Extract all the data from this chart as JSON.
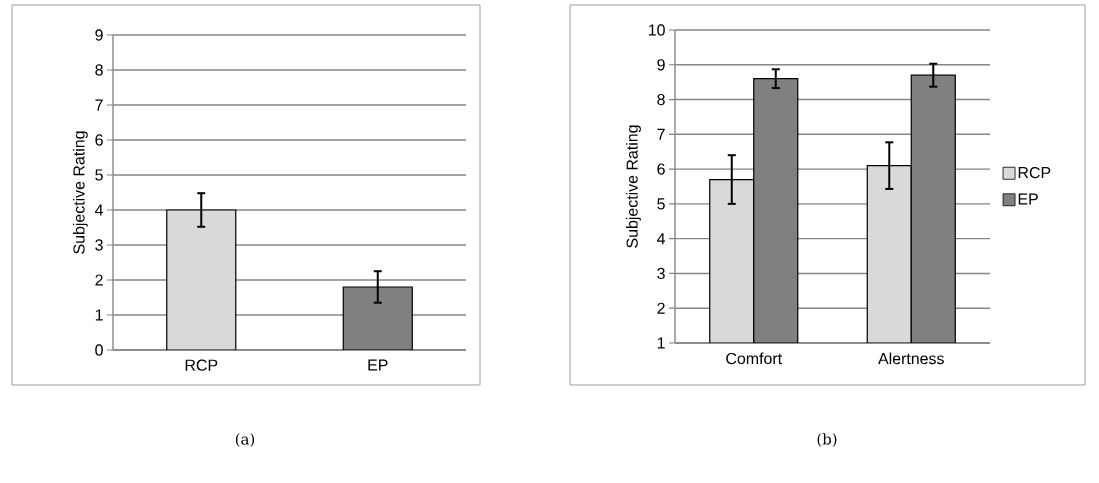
{
  "chart_data": [
    {
      "type": "bar",
      "ylabel": "Subjective Rating",
      "categories": [
        "RCP",
        "EP"
      ],
      "values": [
        4.0,
        1.8
      ],
      "colors": [
        "#d9d9d9",
        "#808080"
      ],
      "errors": [
        0.48,
        0.45
      ],
      "ylim": [
        0,
        9
      ],
      "yticks": [
        0,
        1,
        2,
        3,
        4,
        5,
        6,
        7,
        8,
        9
      ],
      "grid": "y",
      "annotations": [
        "(a)"
      ]
    },
    {
      "type": "bar",
      "ylabel": "Subjective Rating",
      "categories": [
        "Comfort",
        "Alertness"
      ],
      "series": [
        {
          "name": "RCP",
          "color": "#d9d9d9",
          "values": [
            5.7,
            6.1
          ],
          "errors": [
            0.7,
            0.67
          ]
        },
        {
          "name": "EP",
          "color": "#808080",
          "values": [
            8.6,
            8.7
          ],
          "errors": [
            0.27,
            0.33
          ]
        }
      ],
      "ylim": [
        1,
        10
      ],
      "yticks": [
        1,
        2,
        3,
        4,
        5,
        6,
        7,
        8,
        9,
        10
      ],
      "grid": "y",
      "legend": "right",
      "annotations": [
        "(b)"
      ]
    }
  ]
}
